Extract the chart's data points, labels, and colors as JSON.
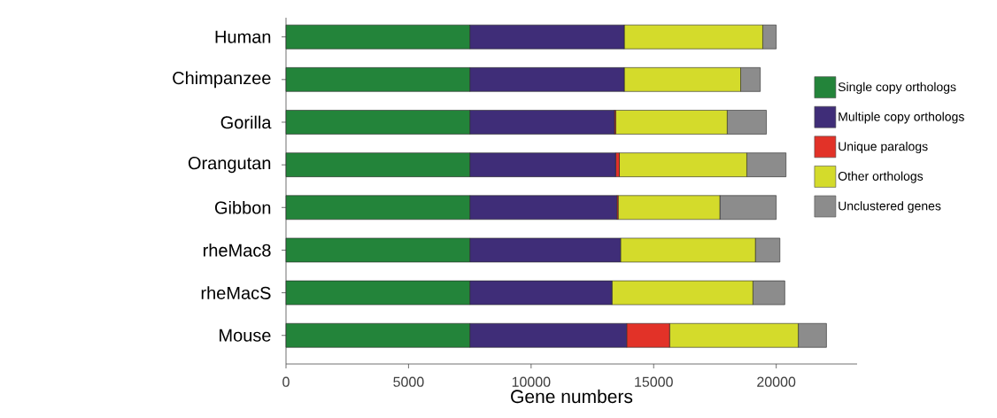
{
  "chart_data": {
    "type": "bar",
    "orientation": "horizontal",
    "stacked": true,
    "xlabel": "Gene numbers",
    "categories": [
      "Human",
      "Chimpanzee",
      "Gorilla",
      "Orangutan",
      "Gibbon",
      "rheMac8",
      "rheMacS",
      "Mouse"
    ],
    "series": [
      {
        "name": "Single copy orthologs",
        "color": "#23843a",
        "values": [
          7500,
          7500,
          7500,
          7500,
          7500,
          7500,
          7500,
          7500
        ]
      },
      {
        "name": "Multiple copy orthologs",
        "color": "#3f2d78",
        "values": [
          6300,
          6300,
          5900,
          5950,
          6000,
          6150,
          5800,
          6400
        ]
      },
      {
        "name": "Unique paralogs",
        "color": "#e23228",
        "values": [
          0,
          0,
          50,
          150,
          50,
          0,
          0,
          1750
        ]
      },
      {
        "name": "Other orthologs",
        "color": "#d4db2b",
        "values": [
          5650,
          4750,
          4550,
          5200,
          4150,
          5500,
          5750,
          5250
        ]
      },
      {
        "name": "Unclustered genes",
        "color": "#8c8c8c",
        "values": [
          550,
          800,
          1600,
          1600,
          2300,
          1000,
          1300,
          1150
        ]
      }
    ],
    "xlim": [
      0,
      23300
    ],
    "xticks": [
      0,
      5000,
      10000,
      15000,
      20000
    ],
    "legend": "right"
  }
}
